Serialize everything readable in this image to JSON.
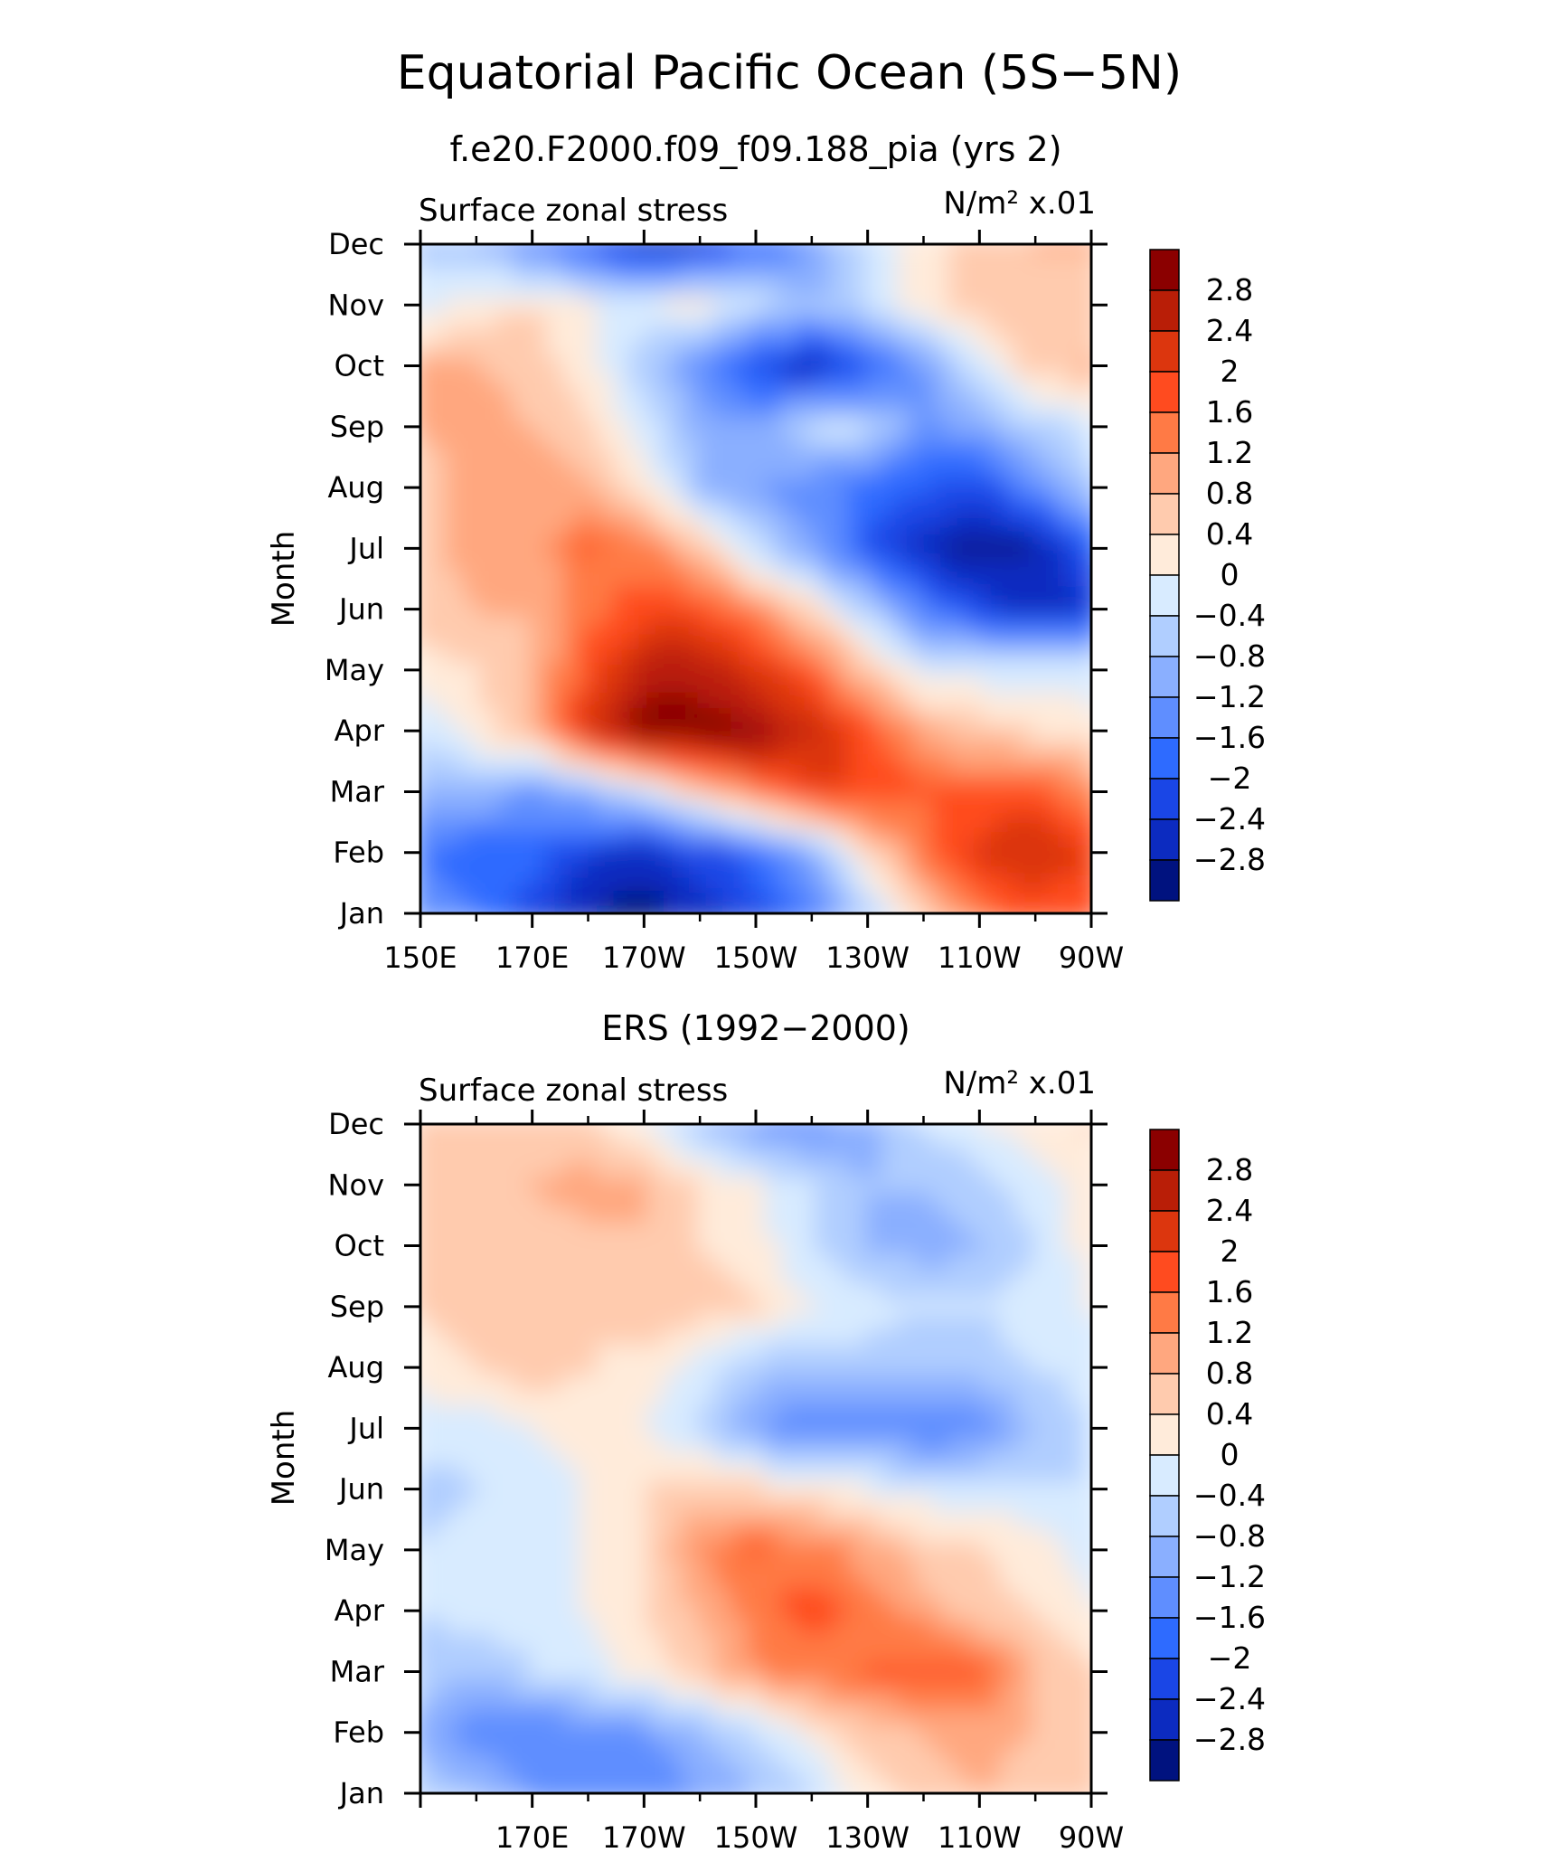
{
  "page": {
    "title": "Equatorial Pacific Ocean (5S−5N)"
  },
  "colorbar": {
    "levels": [
      "2.8",
      "2.4",
      "2",
      "1.6",
      "1.2",
      "0.8",
      "0.4",
      "0",
      "−0.4",
      "−0.8",
      "−1.2",
      "−1.6",
      "−2",
      "−2.4",
      "−2.8"
    ],
    "colors": [
      "#8b0000",
      "#b91e07",
      "#dc360e",
      "#ff4b1f",
      "#ff7a45",
      "#ffa77f",
      "#ffcbae",
      "#ffebda",
      "#d8ebff",
      "#b0ceff",
      "#8aafff",
      "#5f8eff",
      "#2e6bff",
      "#1a46e6",
      "#0c2bc0",
      "#00127f"
    ]
  },
  "chart_data": [
    {
      "type": "heatmap",
      "title": "f.e20.F2000.f09_f09.188_pia (yrs 2)",
      "variable": "Surface zonal stress",
      "units": "N/m² x.01",
      "ylabel": "Month",
      "xticks": [
        "150E",
        "170E",
        "170W",
        "150W",
        "130W",
        "110W",
        "90W"
      ],
      "yticks": [
        "Jan",
        "Feb",
        "Mar",
        "Apr",
        "May",
        "Jun",
        "Jul",
        "Aug",
        "Sep",
        "Oct",
        "Nov",
        "Dec"
      ],
      "xlim": [
        "150E",
        "90W"
      ],
      "ylim": [
        "Jan",
        "Dec"
      ],
      "contour_levels": [
        -2.8,
        -2.4,
        -2,
        -1.6,
        -1.2,
        -0.8,
        -0.4,
        0,
        0.4,
        0.8,
        1.2,
        1.6,
        2,
        2.4,
        2.8
      ],
      "longitudes": [
        150,
        160,
        170,
        180,
        190,
        200,
        210,
        220,
        230,
        240,
        250,
        260,
        270
      ],
      "months": [
        "Jan",
        "Feb",
        "Mar",
        "Apr",
        "May",
        "Jun",
        "Jul",
        "Aug",
        "Sep",
        "Oct",
        "Nov",
        "Dec"
      ],
      "values": [
        [
          -1.4,
          -1.6,
          -2.2,
          -2.8,
          -3.0,
          -2.6,
          -2.2,
          -1.6,
          -0.6,
          0.6,
          1.4,
          1.8,
          1.6
        ],
        [
          -1.6,
          -2.0,
          -1.8,
          -2.4,
          -2.6,
          -2.2,
          -1.8,
          -1.0,
          0.4,
          1.4,
          2.2,
          2.4,
          2.0
        ],
        [
          -0.8,
          -0.8,
          -1.4,
          -0.8,
          -0.2,
          0.6,
          1.4,
          2.0,
          2.0,
          1.6,
          1.6,
          1.8,
          1.2
        ],
        [
          -0.4,
          0.2,
          0.8,
          2.2,
          3.0,
          3.0,
          2.8,
          2.4,
          1.8,
          1.0,
          0.6,
          0.4,
          0.2
        ],
        [
          0.2,
          0.4,
          0.8,
          1.8,
          2.6,
          2.6,
          2.2,
          1.6,
          0.6,
          -0.2,
          -0.2,
          -0.2,
          -0.2
        ],
        [
          0.6,
          0.8,
          0.8,
          1.4,
          1.8,
          1.8,
          1.2,
          0.4,
          -0.6,
          -1.6,
          -2.2,
          -2.6,
          -2.4
        ],
        [
          0.6,
          1.0,
          1.0,
          1.6,
          1.4,
          0.6,
          -0.4,
          -1.2,
          -2.0,
          -2.6,
          -3.0,
          -2.8,
          -2.0
        ],
        [
          0.6,
          1.0,
          1.2,
          0.8,
          0.2,
          -0.8,
          -1.2,
          -1.4,
          -1.8,
          -2.0,
          -2.2,
          -1.4,
          -0.6
        ],
        [
          0.8,
          1.0,
          0.8,
          0.4,
          -0.2,
          -1.0,
          -1.2,
          -0.4,
          -0.4,
          -1.4,
          -1.0,
          -0.6,
          -0.2
        ],
        [
          0.8,
          0.8,
          0.6,
          0.2,
          -0.6,
          -1.4,
          -2.2,
          -2.6,
          -2.0,
          -1.2,
          -0.2,
          0.6,
          0.8
        ],
        [
          -0.2,
          0.2,
          0.4,
          0.0,
          -0.2,
          0.2,
          -0.4,
          -0.8,
          -0.4,
          0.2,
          0.6,
          0.8,
          0.6
        ],
        [
          -0.6,
          -0.8,
          -1.4,
          -2.0,
          -2.6,
          -2.4,
          -1.8,
          -1.2,
          -0.4,
          0.2,
          0.6,
          0.8,
          0.8
        ]
      ]
    },
    {
      "type": "heatmap",
      "title": "ERS (1992−2000)",
      "variable": "Surface zonal stress",
      "units": "N/m² x.01",
      "ylabel": "Month",
      "xticks": [
        "",
        "170E",
        "170W",
        "150W",
        "130W",
        "110W",
        "90W"
      ],
      "yticks": [
        "Jan",
        "Feb",
        "Mar",
        "Apr",
        "May",
        "Jun",
        "Jul",
        "Aug",
        "Sep",
        "Oct",
        "Nov",
        "Dec"
      ],
      "xlim": [
        "150E",
        "90W"
      ],
      "ylim": [
        "Jan",
        "Dec"
      ],
      "contour_levels": [
        -2.8,
        -2.4,
        -2,
        -1.6,
        -1.2,
        -0.8,
        -0.4,
        0,
        0.4,
        0.8,
        1.2,
        1.6,
        2,
        2.4,
        2.8
      ],
      "longitudes": [
        150,
        160,
        170,
        180,
        190,
        200,
        210,
        220,
        230,
        240,
        250,
        260,
        270
      ],
      "months": [
        "Jan",
        "Feb",
        "Mar",
        "Apr",
        "May",
        "Jun",
        "Jul",
        "Aug",
        "Sep",
        "Oct",
        "Nov",
        "Dec"
      ],
      "values": [
        [
          -0.6,
          -0.8,
          -1.2,
          -1.4,
          -1.6,
          -1.2,
          -0.8,
          -0.4,
          0.2,
          0.6,
          0.8,
          0.6,
          0.4
        ],
        [
          -1.0,
          -1.4,
          -1.6,
          -1.4,
          -1.2,
          -0.8,
          -0.4,
          0.2,
          0.6,
          0.8,
          1.0,
          0.8,
          0.4
        ],
        [
          -0.6,
          -0.8,
          -0.4,
          -0.2,
          0.2,
          0.6,
          1.2,
          1.4,
          1.6,
          1.8,
          1.6,
          0.8,
          0.4
        ],
        [
          -0.4,
          -0.2,
          -0.2,
          0.0,
          0.4,
          0.8,
          1.4,
          1.8,
          1.4,
          1.0,
          0.6,
          0.4,
          0.0
        ],
        [
          -0.4,
          -0.2,
          -0.2,
          0.0,
          0.4,
          1.2,
          1.6,
          1.4,
          1.0,
          0.6,
          0.4,
          0.2,
          -0.2
        ],
        [
          -0.6,
          -0.4,
          -0.2,
          0.0,
          0.4,
          0.6,
          0.4,
          0.2,
          0.0,
          -0.2,
          -0.2,
          -0.4,
          -0.4
        ],
        [
          -0.2,
          -0.2,
          0.0,
          0.2,
          0.0,
          -0.4,
          -1.2,
          -1.6,
          -1.4,
          -1.6,
          -1.4,
          -0.8,
          -0.4
        ],
        [
          0.2,
          0.4,
          0.6,
          0.4,
          0.2,
          -0.2,
          -0.6,
          -0.8,
          -0.6,
          -0.6,
          -0.6,
          -0.4,
          -0.2
        ],
        [
          0.4,
          0.6,
          0.4,
          0.4,
          0.8,
          0.6,
          0.4,
          0.0,
          -0.2,
          -0.4,
          -0.4,
          -0.2,
          0.0
        ],
        [
          0.4,
          0.6,
          0.6,
          0.6,
          0.8,
          0.4,
          0.2,
          -0.4,
          -0.8,
          -1.0,
          -0.8,
          -0.4,
          0.2
        ],
        [
          0.4,
          0.6,
          0.8,
          1.0,
          0.8,
          0.4,
          0.0,
          -0.4,
          -0.8,
          -0.8,
          -0.6,
          -0.2,
          0.2
        ],
        [
          0.6,
          0.8,
          0.6,
          0.4,
          0.0,
          -0.6,
          -1.2,
          -1.4,
          -1.0,
          -0.4,
          0.0,
          0.2,
          0.4
        ]
      ]
    }
  ]
}
